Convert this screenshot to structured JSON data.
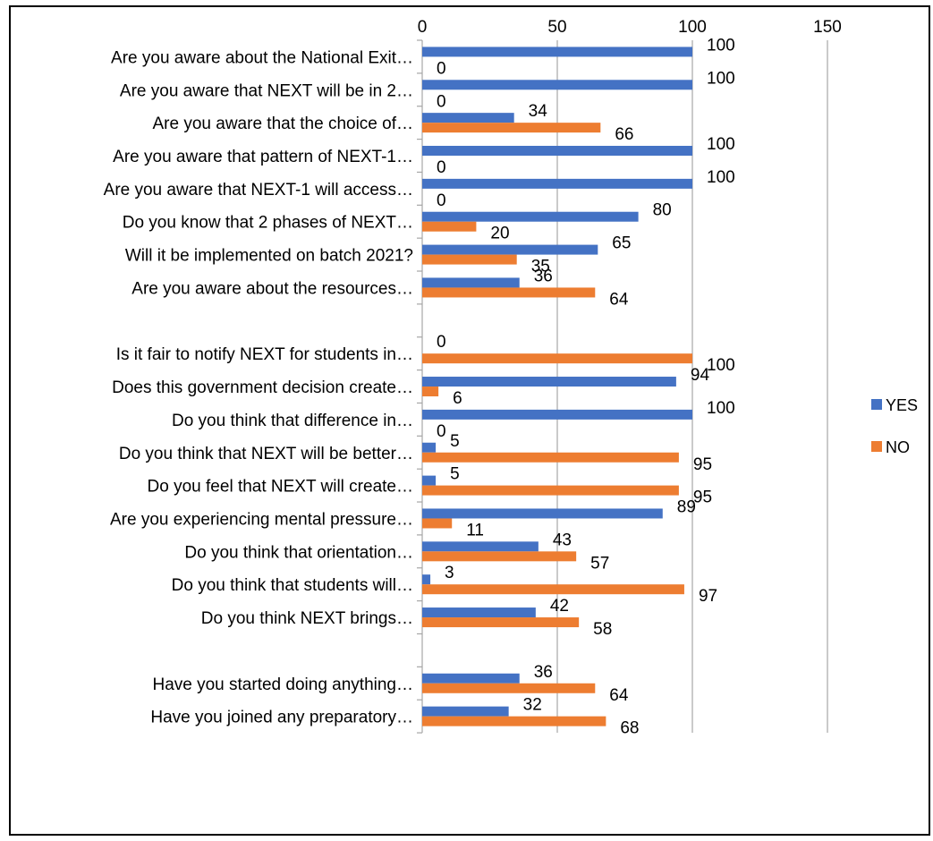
{
  "chart_data": {
    "type": "bar",
    "orientation": "horizontal",
    "title": "",
    "xlabel": "",
    "ylabel": "",
    "xlim": [
      0,
      150
    ],
    "xticks": [
      0,
      50,
      100,
      150
    ],
    "x_axis_position": "top",
    "grid": true,
    "legend_position": "right",
    "categories": [
      "Are you aware about the National Exit…",
      "Are you aware that NEXT will be in 2…",
      "Are you aware that the choice of…",
      "Are you aware that pattern of NEXT-1…",
      "Are you aware that NEXT-1 will access…",
      "Do you know that 2 phases of NEXT…",
      "Will it be implemented on batch 2021?",
      "Are you aware about the resources…",
      "",
      "Is it fair to notify NEXT for students in…",
      "Does this government decision create…",
      "Do you think that difference in…",
      "Do you think that NEXT will be better…",
      "Do you feel that NEXT will create…",
      "Are you experiencing mental pressure…",
      "Do you think that orientation…",
      "Do you think that students will…",
      "Do you think NEXT brings…",
      "",
      "Have you started doing anything…",
      "Have you joined any preparatory…"
    ],
    "series": [
      {
        "name": "YES",
        "color": "#4472C4",
        "values": [
          100,
          100,
          34,
          100,
          100,
          80,
          65,
          36,
          null,
          0,
          94,
          100,
          5,
          5,
          89,
          43,
          3,
          42,
          null,
          36,
          32
        ]
      },
      {
        "name": "NO",
        "color": "#ED7D31",
        "values": [
          0,
          0,
          66,
          0,
          0,
          20,
          35,
          64,
          null,
          100,
          6,
          0,
          95,
          95,
          11,
          57,
          97,
          58,
          null,
          64,
          68
        ]
      }
    ]
  }
}
